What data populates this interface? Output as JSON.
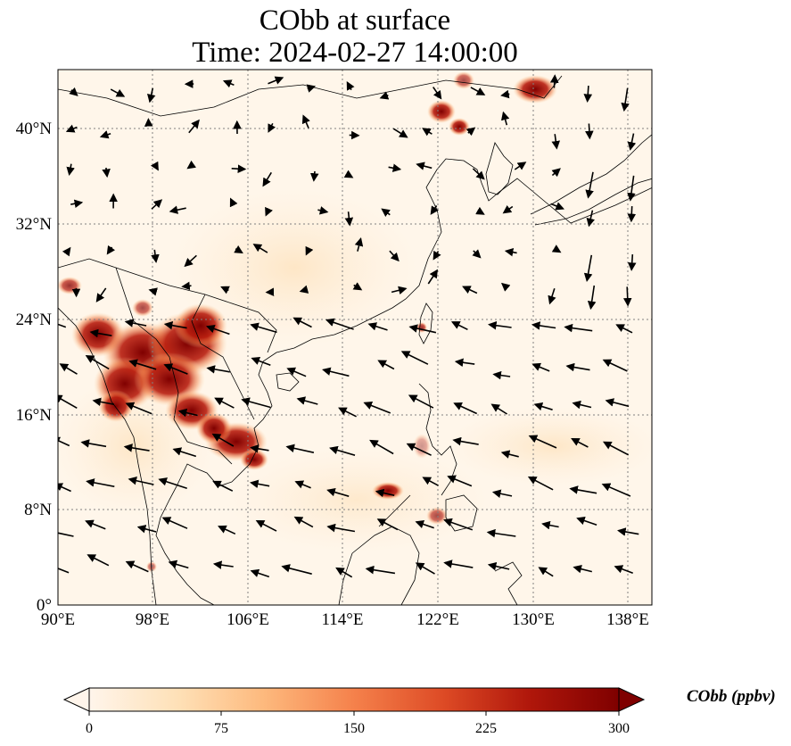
{
  "title_line1": "CObb at surface",
  "title_line2": "Time: 2024-02-27 14:00:00",
  "lon_ticks": [
    "90°E",
    "98°E",
    "106°E",
    "114°E",
    "122°E",
    "130°E",
    "138°E"
  ],
  "lat_ticks": [
    "0°",
    "8°N",
    "16°N",
    "24°N",
    "32°N",
    "40°N"
  ],
  "colorbar": {
    "label": "CObb (ppbv)",
    "ticks": [
      "0",
      "75",
      "150",
      "225",
      "300"
    ],
    "colors": [
      "#fff5eb",
      "#fee0b6",
      "#fdb97d",
      "#f5814b",
      "#dd4a25",
      "#b0170b",
      "#7f0000"
    ]
  }
}
